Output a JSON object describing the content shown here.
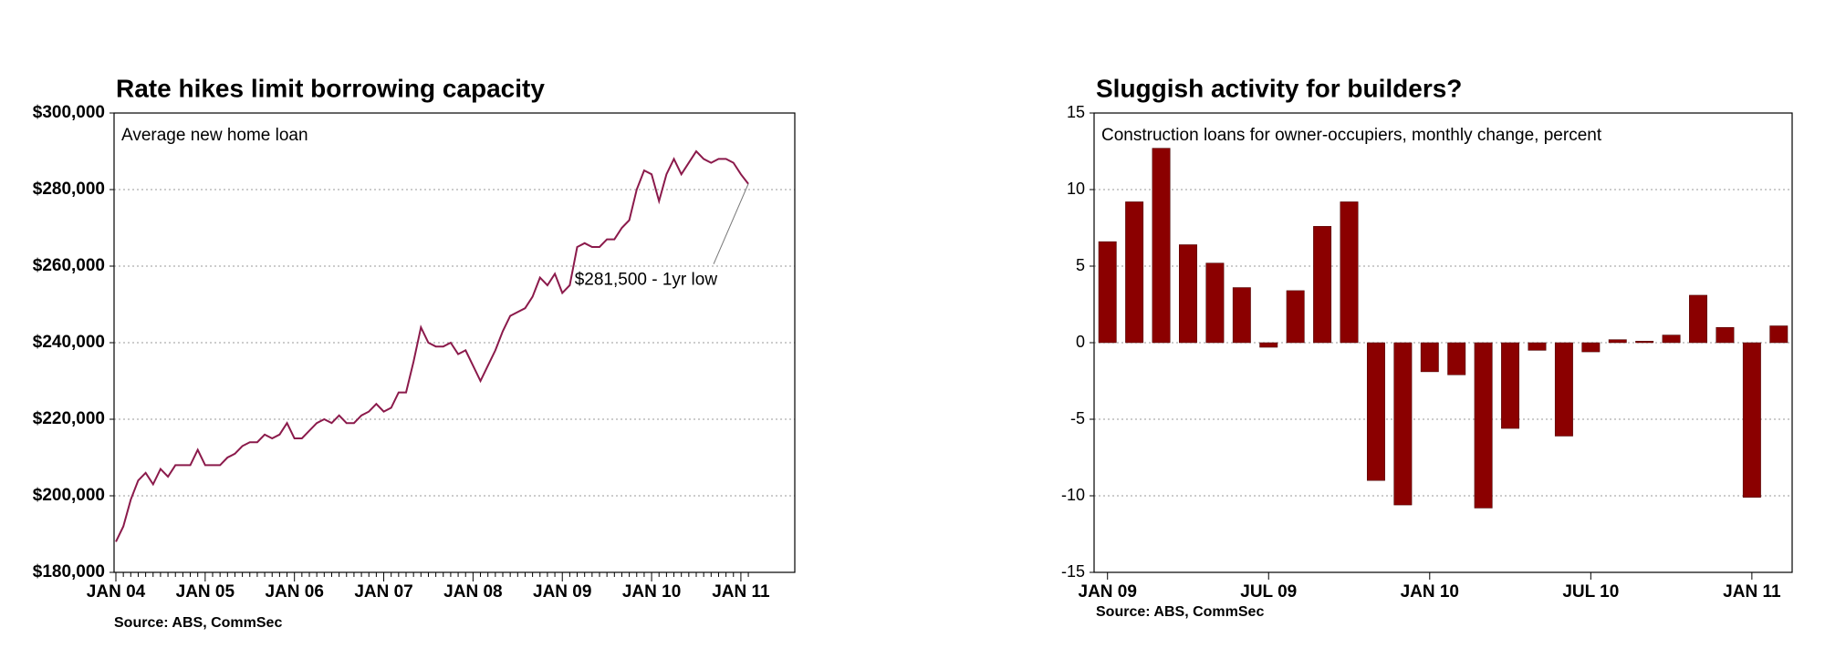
{
  "chart_data": [
    {
      "type": "line",
      "title": "Rate hikes limit borrowing capacity",
      "subtitle": "Average new home loan",
      "source": "Source: ABS, CommSec",
      "annotation": "$281,500 - 1yr low",
      "categories": [
        "JAN 04",
        null,
        null,
        null,
        null,
        null,
        null,
        null,
        null,
        null,
        null,
        null,
        "JAN 05",
        null,
        null,
        null,
        null,
        null,
        null,
        null,
        null,
        null,
        null,
        null,
        "JAN 06",
        null,
        null,
        null,
        null,
        null,
        null,
        null,
        null,
        null,
        null,
        null,
        "JAN 07",
        null,
        null,
        null,
        null,
        null,
        null,
        null,
        null,
        null,
        null,
        null,
        "JAN 08",
        null,
        null,
        null,
        null,
        null,
        null,
        null,
        null,
        null,
        null,
        null,
        "JAN 09",
        null,
        null,
        null,
        null,
        null,
        null,
        null,
        null,
        null,
        null,
        null,
        "JAN 10",
        null,
        null,
        null,
        null,
        null,
        null,
        null,
        null,
        null,
        null,
        null,
        "JAN 11",
        null
      ],
      "series": [
        {
          "name": "Average new home loan",
          "color": "#8b1a4b",
          "values": [
            188000,
            192000,
            199000,
            204000,
            206000,
            203000,
            207000,
            205000,
            208000,
            208000,
            208000,
            212000,
            208000,
            208000,
            208000,
            210000,
            211000,
            213000,
            214000,
            214000,
            216000,
            215000,
            216000,
            219000,
            215000,
            215000,
            217000,
            219000,
            220000,
            219000,
            221000,
            219000,
            219000,
            221000,
            222000,
            224000,
            222000,
            223000,
            227000,
            227000,
            235000,
            244000,
            240000,
            239000,
            239000,
            240000,
            237000,
            238000,
            234000,
            230000,
            234000,
            238000,
            243000,
            247000,
            248000,
            249000,
            252000,
            257000,
            255000,
            258000,
            253000,
            255000,
            265000,
            266000,
            265000,
            265000,
            267000,
            267000,
            270000,
            272000,
            280000,
            285000,
            284000,
            277000,
            284000,
            288000,
            284000,
            287000,
            290000,
            288000,
            287000,
            288000,
            288000,
            287000,
            284000,
            281500
          ]
        }
      ],
      "ylim": [
        180000,
        300000
      ],
      "yticks": [
        {
          "value": 180000,
          "label": "$180,000"
        },
        {
          "value": 200000,
          "label": "$200,000"
        },
        {
          "value": 220000,
          "label": "$220,000"
        },
        {
          "value": 240000,
          "label": "$240,000"
        },
        {
          "value": 260000,
          "label": "$260,000"
        },
        {
          "value": 280000,
          "label": "$280,000"
        },
        {
          "value": 300000,
          "label": "$300,000"
        }
      ],
      "grid": true
    },
    {
      "type": "bar",
      "title": "Sluggish activity for builders?",
      "subtitle": "Construction loans for owner-occupiers, monthly change, percent",
      "source": "Source: ABS, CommSec",
      "categories": [
        "JAN 09",
        null,
        null,
        null,
        null,
        null,
        "JUL 09",
        null,
        null,
        null,
        null,
        null,
        "JAN 10",
        null,
        null,
        null,
        null,
        null,
        "JUL 10",
        null,
        null,
        null,
        null,
        null,
        "JAN 11",
        null
      ],
      "series": [
        {
          "name": "Construction loans",
          "color": "#8b0000",
          "values": [
            6.6,
            9.2,
            12.7,
            6.4,
            5.2,
            3.6,
            -0.3,
            3.4,
            7.6,
            9.2,
            -9.0,
            -10.6,
            -1.9,
            -2.1,
            -10.8,
            -5.6,
            -0.5,
            -6.1,
            -0.6,
            0.2,
            0.1,
            0.5,
            3.1,
            1.0,
            -10.1,
            1.1
          ]
        }
      ],
      "ylim": [
        -15,
        15
      ],
      "yticks": [
        -15,
        -10,
        -5,
        0,
        5,
        10,
        15
      ],
      "grid": true
    }
  ]
}
